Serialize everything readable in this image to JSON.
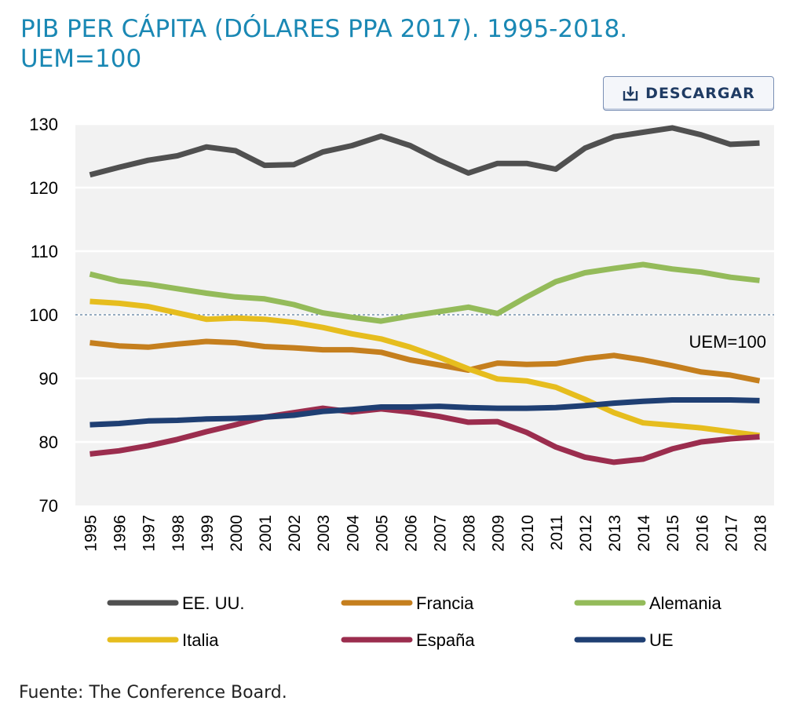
{
  "title": "PIB PER CÁPITA (DÓLARES PPA 2017). 1995-2018. UEM=100",
  "download": {
    "label": "DESCARGAR",
    "icon": "download-icon"
  },
  "source": "Fuente: The Conference Board.",
  "chart_data": {
    "type": "line",
    "x": [
      1995,
      1996,
      1997,
      1998,
      1999,
      2000,
      2001,
      2002,
      2003,
      2004,
      2005,
      2006,
      2007,
      2008,
      2009,
      2010,
      2011,
      2012,
      2013,
      2014,
      2015,
      2016,
      2017,
      2018
    ],
    "ylim": [
      70,
      130
    ],
    "yticks": [
      70,
      80,
      90,
      100,
      110,
      120,
      130
    ],
    "grid": true,
    "reference_line": {
      "y": 100,
      "label": "UEM=100",
      "style": "dashed"
    },
    "legend_position": "bottom",
    "series": [
      {
        "name": "EE. UU.",
        "color": "#505050",
        "values": [
          122.0,
          123.2,
          124.3,
          125.0,
          126.4,
          125.8,
          123.5,
          123.6,
          125.6,
          126.6,
          128.1,
          126.6,
          124.3,
          122.3,
          123.8,
          123.8,
          122.9,
          126.2,
          128.0,
          128.7,
          129.4,
          128.3,
          126.8,
          127.0
        ]
      },
      {
        "name": "Francia",
        "color": "#c57f1e",
        "values": [
          95.6,
          95.1,
          94.9,
          95.4,
          95.8,
          95.6,
          95.0,
          94.8,
          94.5,
          94.5,
          94.1,
          92.9,
          92.1,
          91.3,
          92.4,
          92.2,
          92.3,
          93.1,
          93.6,
          92.9,
          92.0,
          91.0,
          90.5,
          89.6
        ]
      },
      {
        "name": "Alemania",
        "color": "#94bb5a",
        "values": [
          106.4,
          105.3,
          104.8,
          104.1,
          103.4,
          102.8,
          102.5,
          101.6,
          100.3,
          99.6,
          99.0,
          99.8,
          100.5,
          101.2,
          100.2,
          102.8,
          105.2,
          106.6,
          107.3,
          107.9,
          107.2,
          106.7,
          105.9,
          105.4
        ]
      },
      {
        "name": "Italia",
        "color": "#e6bd1e",
        "values": [
          102.1,
          101.8,
          101.3,
          100.3,
          99.3,
          99.5,
          99.3,
          98.8,
          98.0,
          97.0,
          96.2,
          94.9,
          93.3,
          91.5,
          89.9,
          89.6,
          88.6,
          86.7,
          84.6,
          83.0,
          82.6,
          82.2,
          81.6,
          81.0
        ]
      },
      {
        "name": "España",
        "color": "#9b2d4e",
        "values": [
          78.1,
          78.6,
          79.4,
          80.4,
          81.6,
          82.7,
          83.9,
          84.6,
          85.3,
          84.7,
          85.2,
          84.7,
          84.0,
          83.1,
          83.2,
          81.5,
          79.2,
          77.6,
          76.8,
          77.3,
          78.9,
          80.0,
          80.5,
          80.8
        ]
      },
      {
        "name": "UE",
        "color": "#1f3f73",
        "values": [
          82.7,
          82.9,
          83.3,
          83.4,
          83.6,
          83.7,
          83.9,
          84.2,
          84.8,
          85.1,
          85.5,
          85.5,
          85.6,
          85.4,
          85.3,
          85.3,
          85.4,
          85.7,
          86.1,
          86.4,
          86.6,
          86.6,
          86.6,
          86.5
        ]
      }
    ]
  }
}
